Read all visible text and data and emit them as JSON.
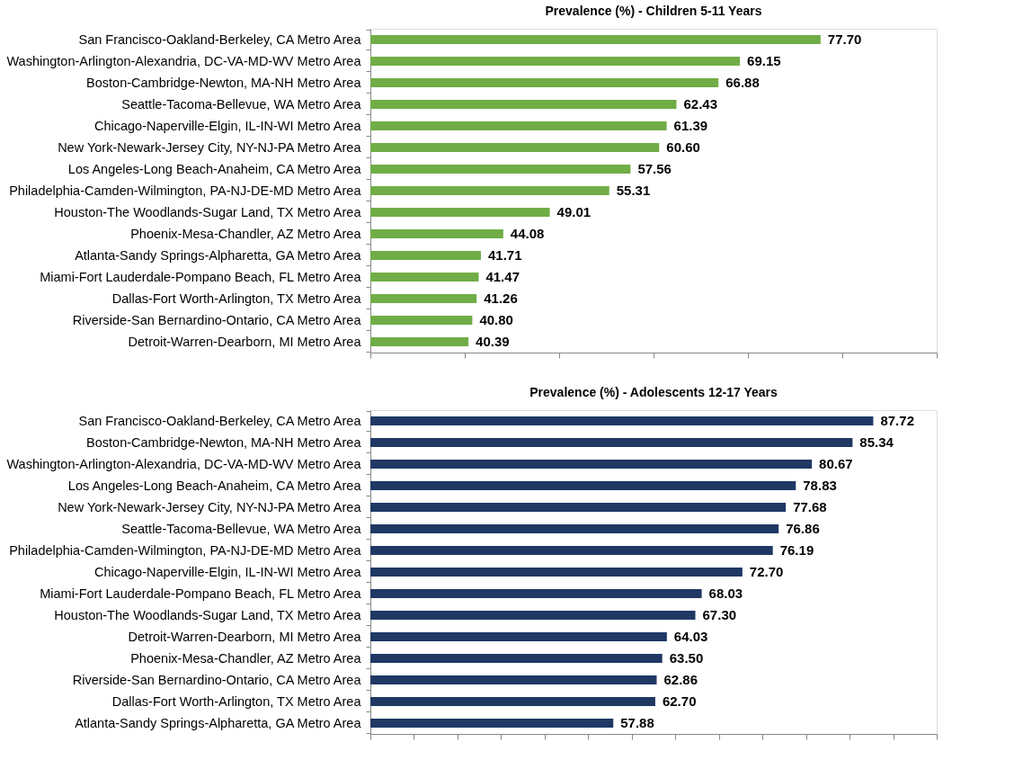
{
  "chart_data": [
    {
      "type": "bar",
      "orientation": "horizontal",
      "title": "Prevalence (%) - Children 5-11  Years",
      "categories": [
        "San Francisco-Oakland-Berkeley, CA Metro Area",
        "Washington-Arlington-Alexandria, DC-VA-MD-WV Metro Area",
        "Boston-Cambridge-Newton, MA-NH Metro Area",
        "Seattle-Tacoma-Bellevue, WA Metro Area",
        "Chicago-Naperville-Elgin, IL-IN-WI Metro Area",
        "New York-Newark-Jersey City, NY-NJ-PA Metro Area",
        "Los Angeles-Long Beach-Anaheim, CA Metro Area",
        "Philadelphia-Camden-Wilmington, PA-NJ-DE-MD Metro Area",
        "Houston-The Woodlands-Sugar Land, TX Metro Area",
        "Phoenix-Mesa-Chandler, AZ Metro Area",
        "Atlanta-Sandy Springs-Alpharetta, GA Metro Area",
        "Miami-Fort Lauderdale-Pompano Beach, FL Metro Area",
        "Dallas-Fort Worth-Arlington, TX Metro Area",
        "Riverside-San Bernardino-Ontario, CA Metro Area",
        "Detroit-Warren-Dearborn, MI Metro Area"
      ],
      "series": [
        {
          "color": "#70ad47",
          "values": [
            77.7,
            69.15,
            66.88,
            62.43,
            61.39,
            60.6,
            57.56,
            55.31,
            49.01,
            44.08,
            41.71,
            41.47,
            41.26,
            40.8,
            40.39
          ],
          "value_labels": [
            "77.70",
            "69.15",
            "66.88",
            "62.43",
            "61.39",
            "60.60",
            "57.56",
            "55.31",
            "49.01",
            "44.08",
            "41.71",
            "41.47",
            "41.26",
            "40.80",
            "40.39"
          ]
        }
      ],
      "xlim": [
        30,
        90
      ],
      "xticks": [
        {
          "value": 30,
          "label": null
        },
        {
          "value": 40,
          "label": null
        },
        {
          "value": 50,
          "label": null
        },
        {
          "value": 60,
          "label": null
        },
        {
          "value": 70,
          "label": null
        },
        {
          "value": 80,
          "label": null
        },
        {
          "value": 90,
          "label": null
        }
      ],
      "tick_labels": "y",
      "grid": false
    },
    {
      "type": "bar",
      "orientation": "horizontal",
      "title": "Prevalence (%) - Adolescents 12-17 Years",
      "categories": [
        "San Francisco-Oakland-Berkeley, CA Metro Area",
        "Boston-Cambridge-Newton, MA-NH Metro Area",
        "Washington-Arlington-Alexandria, DC-VA-MD-WV Metro Area",
        "Los Angeles-Long Beach-Anaheim, CA Metro Area",
        "New York-Newark-Jersey City, NY-NJ-PA Metro Area",
        "Seattle-Tacoma-Bellevue, WA Metro Area",
        "Philadelphia-Camden-Wilmington, PA-NJ-DE-MD Metro Area",
        "Chicago-Naperville-Elgin, IL-IN-WI Metro Area",
        "Miami-Fort Lauderdale-Pompano Beach, FL Metro Area",
        "Houston-The Woodlands-Sugar Land, TX Metro Area",
        "Detroit-Warren-Dearborn, MI Metro Area",
        "Phoenix-Mesa-Chandler, AZ Metro Area",
        "Riverside-San Bernardino-Ontario, CA Metro Area",
        "Dallas-Fort Worth-Arlington, TX Metro Area",
        "Atlanta-Sandy Springs-Alpharetta, GA Metro Area"
      ],
      "series": [
        {
          "color": "#1f3864",
          "values": [
            87.72,
            85.34,
            80.67,
            78.83,
            77.68,
            76.86,
            76.19,
            72.7,
            68.03,
            67.3,
            64.03,
            63.5,
            62.86,
            62.7,
            57.88
          ],
          "value_labels": [
            "87.72",
            "85.34",
            "80.67",
            "78.83",
            "77.68",
            "76.86",
            "76.19",
            "72.70",
            "68.03",
            "67.30",
            "64.03",
            "63.50",
            "62.86",
            "62.70",
            "57.88"
          ]
        }
      ],
      "xlim": [
        30,
        95
      ],
      "xticks": [
        {
          "value": 30,
          "label": null
        },
        {
          "value": 35,
          "label": null
        },
        {
          "value": 40,
          "label": null
        },
        {
          "value": 45,
          "label": null
        },
        {
          "value": 50,
          "label": null
        },
        {
          "value": 55,
          "label": null
        },
        {
          "value": 60,
          "label": null
        },
        {
          "value": 65,
          "label": null
        },
        {
          "value": 70,
          "label": null
        },
        {
          "value": 75,
          "label": null
        },
        {
          "value": 80,
          "label": null
        },
        {
          "value": 85,
          "label": null
        },
        {
          "value": 90,
          "label": null
        },
        {
          "value": 95,
          "label": null
        }
      ],
      "tick_labels": "y",
      "grid": false
    }
  ]
}
